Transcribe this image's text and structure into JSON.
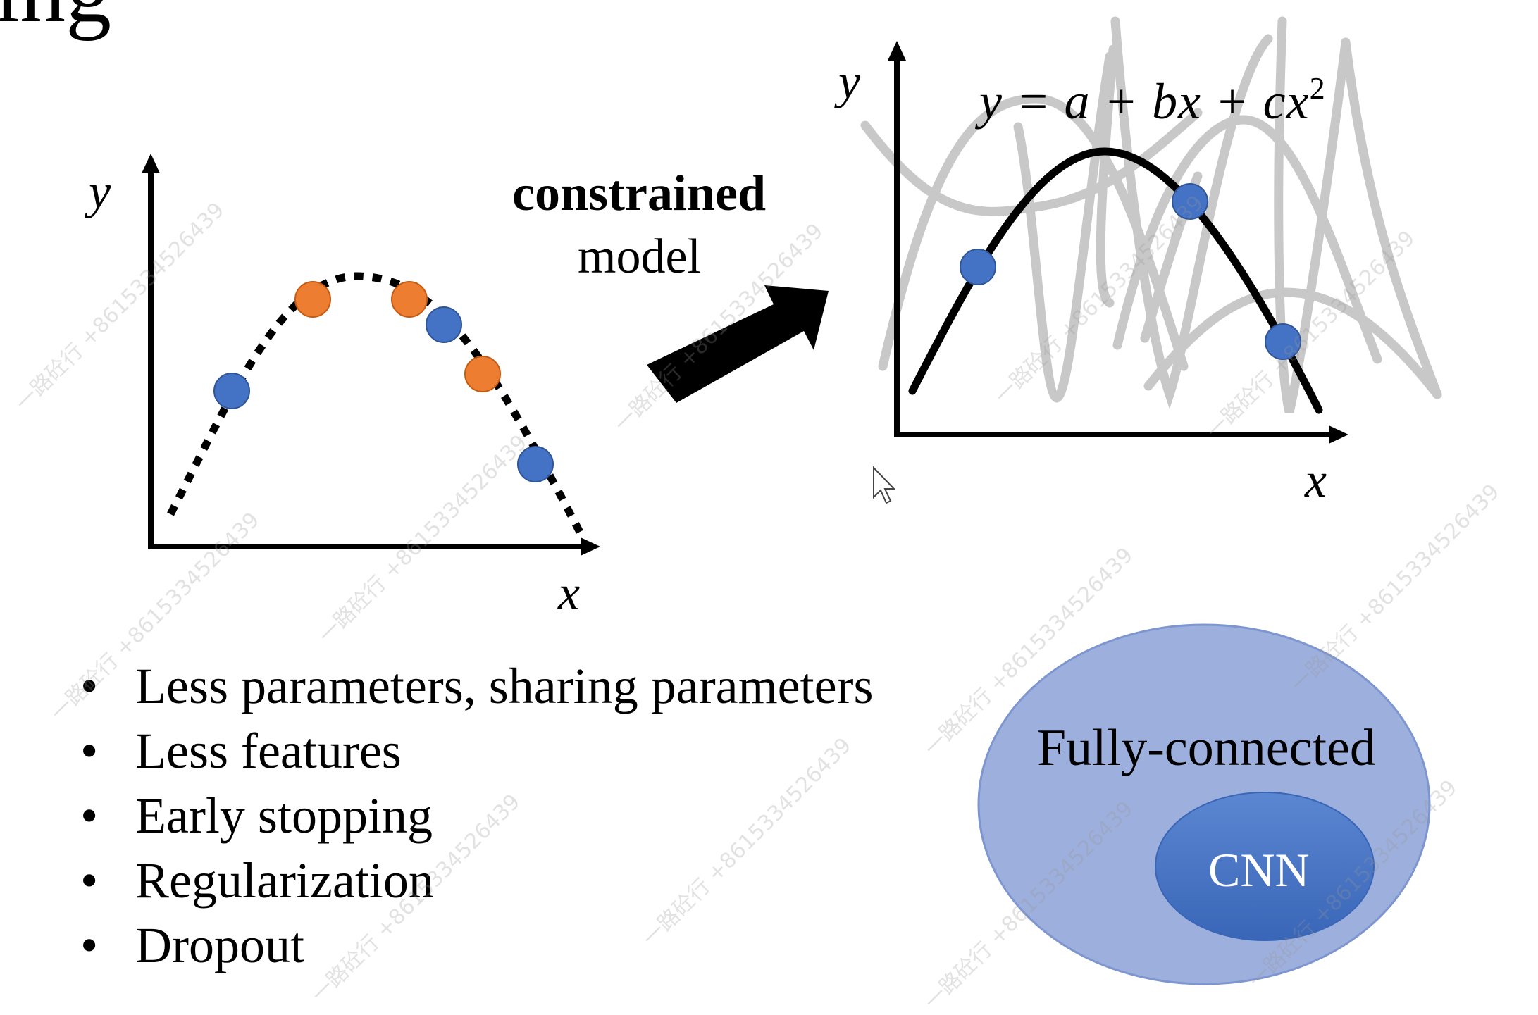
{
  "slide": {
    "title_fragment": "ing",
    "left_plot": {
      "x_label": "x",
      "y_label": "y"
    },
    "arrow_caption": {
      "bold": "constrained",
      "normal": "model"
    },
    "right_plot": {
      "x_label": "x",
      "y_label": "y",
      "equation": "y = a + bx + cx",
      "equation_exponent": "2"
    },
    "bullets": [
      "Less parameters, sharing parameters",
      "Less features",
      "Early stopping",
      "Regularization",
      "Dropout"
    ],
    "venn": {
      "outer_label": "Fully-connected",
      "inner_label": "CNN"
    },
    "watermark": "一路砼行 +8615334526439"
  },
  "colors": {
    "blue_point": "#4472c4",
    "orange_point": "#ed7d31",
    "gray_curves": "#c8c8c8",
    "venn_outer": "#9dafdc",
    "venn_inner": "#4472c4"
  }
}
